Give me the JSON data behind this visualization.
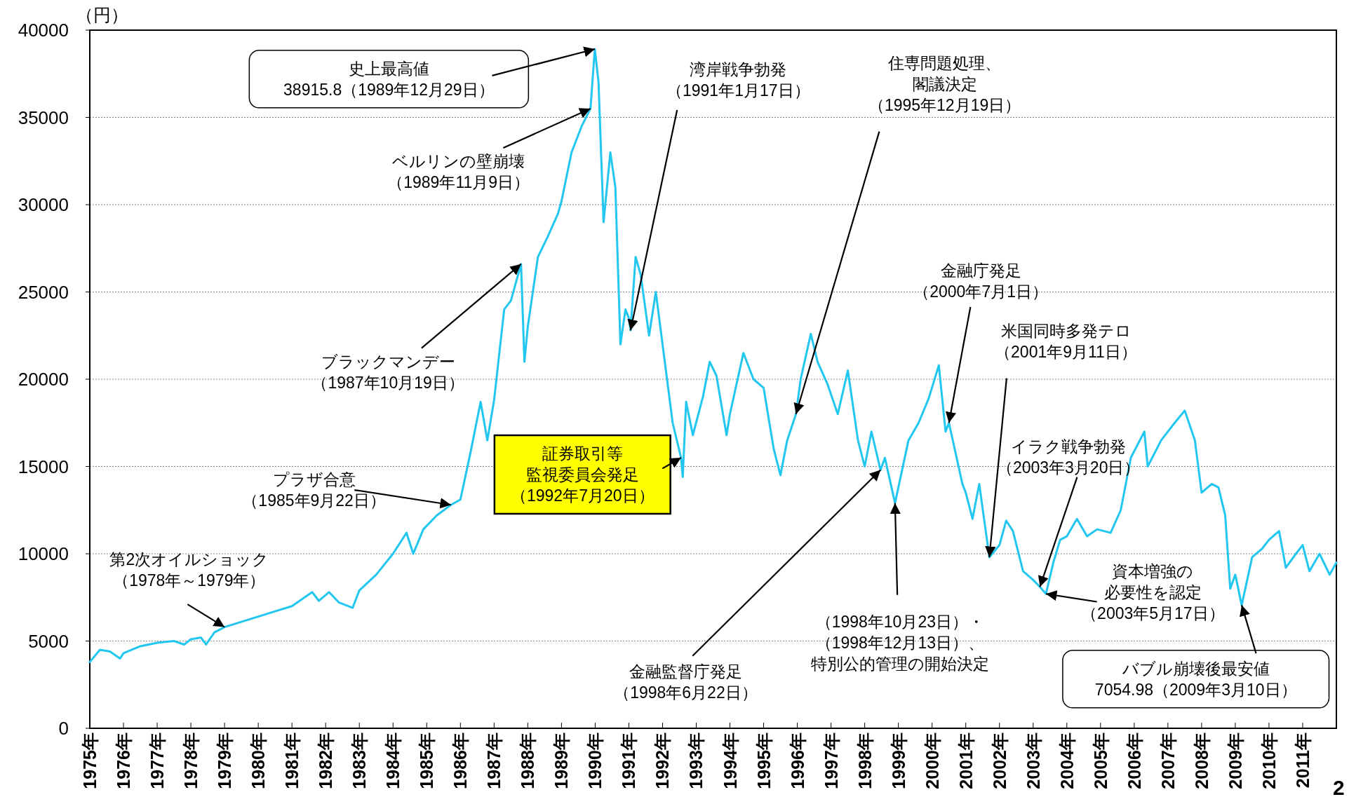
{
  "chart_data": {
    "type": "line",
    "ylabel": "（円）",
    "xlim": [
      1975,
      2012
    ],
    "ylim": [
      0,
      40000
    ],
    "yticks": [
      0,
      5000,
      10000,
      15000,
      20000,
      25000,
      30000,
      35000,
      40000
    ],
    "xticks": [
      {
        "value": 1975,
        "label": "1975年"
      },
      {
        "value": 1976,
        "label": "1976年"
      },
      {
        "value": 1977,
        "label": "1977年"
      },
      {
        "value": 1978,
        "label": "1978年"
      },
      {
        "value": 1979,
        "label": "1979年"
      },
      {
        "value": 1980,
        "label": "1980年"
      },
      {
        "value": 1981,
        "label": "1981年"
      },
      {
        "value": 1982,
        "label": "1982年"
      },
      {
        "value": 1983,
        "label": "1983年"
      },
      {
        "value": 1984,
        "label": "1984年"
      },
      {
        "value": 1985,
        "label": "1985年"
      },
      {
        "value": 1986,
        "label": "1986年"
      },
      {
        "value": 1987,
        "label": "1987年"
      },
      {
        "value": 1988,
        "label": "1988年"
      },
      {
        "value": 1989,
        "label": "1989年"
      },
      {
        "value": 1990,
        "label": "1990年"
      },
      {
        "value": 1991,
        "label": "1991年"
      },
      {
        "value": 1992,
        "label": "1992年"
      },
      {
        "value": 1993,
        "label": "1993年"
      },
      {
        "value": 1994,
        "label": "1994年"
      },
      {
        "value": 1995,
        "label": "1995年"
      },
      {
        "value": 1996,
        "label": "1996年"
      },
      {
        "value": 1997,
        "label": "1997年"
      },
      {
        "value": 1998,
        "label": "1998年"
      },
      {
        "value": 1999,
        "label": "1999年"
      },
      {
        "value": 2000,
        "label": "2000年"
      },
      {
        "value": 2001,
        "label": "2001年"
      },
      {
        "value": 2002,
        "label": "2002年"
      },
      {
        "value": 2003,
        "label": "2003年"
      },
      {
        "value": 2004,
        "label": "2004年"
      },
      {
        "value": 2005,
        "label": "2005年"
      },
      {
        "value": 2006,
        "label": "2006年"
      },
      {
        "value": 2007,
        "label": "2007年"
      },
      {
        "value": 2008,
        "label": "2008年"
      },
      {
        "value": 2009,
        "label": "2009年"
      },
      {
        "value": 2010,
        "label": "2010年"
      },
      {
        "value": 2011,
        "label": "2011年"
      }
    ],
    "grid": "y",
    "line_style": "solid",
    "marker": "none",
    "series": [
      {
        "color": "#22c7f0",
        "x": [
          1975.0,
          1975.3,
          1975.6,
          1975.9,
          1976.0,
          1976.5,
          1977.0,
          1977.5,
          1977.8,
          1978.0,
          1978.3,
          1978.45,
          1978.7,
          1979.0,
          1979.5,
          1980.0,
          1980.5,
          1981.0,
          1981.6,
          1981.8,
          1982.1,
          1982.4,
          1982.8,
          1983.0,
          1983.5,
          1984.0,
          1984.4,
          1984.6,
          1984.9,
          1985.3,
          1985.72,
          1986.0,
          1986.3,
          1986.6,
          1986.8,
          1987.0,
          1987.3,
          1987.5,
          1987.8,
          1987.9,
          1988.0,
          1988.3,
          1988.6,
          1988.9,
          1989.0,
          1989.3,
          1989.6,
          1989.86,
          1989.99,
          1990.1,
          1990.25,
          1990.45,
          1990.6,
          1990.75,
          1990.9,
          1991.0,
          1991.05,
          1991.2,
          1991.35,
          1991.6,
          1991.8,
          1992.0,
          1992.3,
          1992.55,
          1992.6,
          1992.7,
          1992.9,
          1993.2,
          1993.4,
          1993.6,
          1993.9,
          1994.0,
          1994.4,
          1994.7,
          1995.0,
          1995.3,
          1995.5,
          1995.7,
          1995.96,
          1996.1,
          1996.4,
          1996.6,
          1996.9,
          1997.2,
          1997.5,
          1997.8,
          1998.0,
          1998.2,
          1998.47,
          1998.6,
          1998.9,
          1999.0,
          1999.3,
          1999.6,
          1999.9,
          2000.2,
          2000.4,
          2000.5,
          2000.9,
          2001.0,
          2001.2,
          2001.4,
          2001.7,
          2002.0,
          2002.2,
          2002.4,
          2002.7,
          2003.0,
          2003.2,
          2003.38,
          2003.6,
          2003.8,
          2004.0,
          2004.3,
          2004.6,
          2004.9,
          2005.3,
          2005.6,
          2005.9,
          2006.3,
          2006.4,
          2006.8,
          2007.2,
          2007.5,
          2007.8,
          2008.0,
          2008.3,
          2008.5,
          2008.7,
          2008.85,
          2009.0,
          2009.19,
          2009.5,
          2009.8,
          2010.0,
          2010.3,
          2010.5,
          2010.8,
          2011.0,
          2011.2,
          2011.5,
          2011.8,
          2012.0
        ],
        "values": [
          3800,
          4500,
          4400,
          4000,
          4300,
          4700,
          4900,
          5000,
          4800,
          5100,
          5200,
          4800,
          5500,
          5800,
          6100,
          6400,
          6700,
          7000,
          7800,
          7300,
          7800,
          7200,
          6900,
          7900,
          8800,
          10000,
          11200,
          10000,
          11400,
          12200,
          12800,
          13100,
          15800,
          18700,
          16500,
          18800,
          24000,
          24500,
          26600,
          21000,
          23000,
          27000,
          28200,
          29500,
          30200,
          33000,
          34500,
          35500,
          38915.8,
          37000,
          29000,
          33000,
          31000,
          22000,
          24000,
          23500,
          22800,
          27000,
          26000,
          22500,
          25000,
          22000,
          17500,
          15500,
          14400,
          18700,
          16800,
          19000,
          21000,
          20200,
          16800,
          18000,
          21500,
          20000,
          19500,
          16000,
          14500,
          16500,
          18000,
          20000,
          22600,
          21000,
          19700,
          18000,
          20500,
          16500,
          15000,
          17000,
          14800,
          15500,
          12900,
          13800,
          16500,
          17500,
          18900,
          20800,
          17000,
          17500,
          14000,
          13500,
          12000,
          14000,
          9800,
          10500,
          11900,
          11300,
          9000,
          8500,
          8100,
          7700,
          9500,
          10800,
          11000,
          12000,
          11000,
          11400,
          11200,
          12500,
          15500,
          17000,
          15000,
          16500,
          17500,
          18200,
          16500,
          13500,
          14000,
          13800,
          12200,
          8000,
          8800,
          7054.98,
          9800,
          10300,
          10800,
          11300,
          9200,
          10000,
          10500,
          9000,
          10000,
          8800,
          9500
        ]
      }
    ],
    "annotations": [
      {
        "text": "史上最高値38915.8（1989年12月29日）",
        "x": 1989.99,
        "y": 38915.8
      },
      {
        "text": "ベルリンの壁崩壊（1989年11月9日）",
        "x": 1989.86,
        "y": 35500
      },
      {
        "text": "ブラックマンデー（1987年10月19日）",
        "x": 1987.8,
        "y": 26600
      },
      {
        "text": "プラザ合意（1985年9月22日）",
        "x": 1985.72,
        "y": 12800
      },
      {
        "text": "第2次オイルショック（1978年～1979年）",
        "x": 1979.0,
        "y": 5800
      },
      {
        "text": "証券取引等監視委員会発足（1992年7月20日）",
        "x": 1992.55,
        "y": 15500
      },
      {
        "text": "金融監督庁発足（1998年6月22日）",
        "x": 1998.47,
        "y": 14800
      },
      {
        "text": "（1998年10月23日）・（1998年12月13日）、特別公的管理の開始決定",
        "x": 1998.9,
        "y": 12900
      },
      {
        "text": "湾岸戦争勃発（1991年1月17日）",
        "x": 1991.05,
        "y": 22800
      },
      {
        "text": "住専問題処理、閣議決定（1995年12月19日）",
        "x": 1995.96,
        "y": 18000
      },
      {
        "text": "金融庁発足（2000年7月1日）",
        "x": 2000.5,
        "y": 17500
      },
      {
        "text": "米国同時多発テロ（2001年9月11日）",
        "x": 2001.7,
        "y": 9800
      },
      {
        "text": "イラク戦争勃発（2003年3月20日）",
        "x": 2003.2,
        "y": 8100
      },
      {
        "text": "資本増強の必要性を認定（2003年5月17日）",
        "x": 2003.38,
        "y": 7700
      },
      {
        "text": "バブル崩壊後最安値7054.98（2009年3月10日）",
        "x": 2009.19,
        "y": 7054.98
      },
      "2"
    ]
  }
}
